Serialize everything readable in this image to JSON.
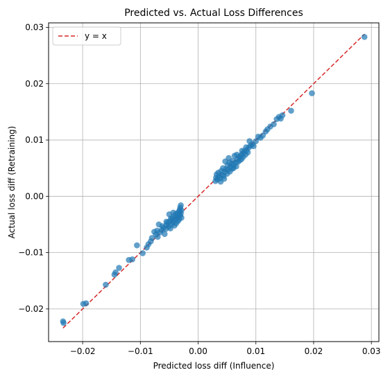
{
  "chart_data": {
    "type": "scatter",
    "title": "Predicted vs. Actual Loss Differences",
    "xlabel": "Predicted loss diff (Influence)",
    "ylabel": "Actual loss diff (Retraining)",
    "xlim": [
      -0.0259,
      0.0313
    ],
    "ylim": [
      -0.0258,
      0.0308
    ],
    "xticks": [
      -0.02,
      -0.01,
      0.0,
      0.01,
      0.02,
      0.03
    ],
    "xtick_labels": [
      "−0.02",
      "−0.01",
      "0.00",
      "0.01",
      "0.02",
      "0.03"
    ],
    "yticks": [
      -0.02,
      -0.01,
      0.0,
      0.01,
      0.02,
      0.03
    ],
    "ytick_labels": [
      "−0.02",
      "−0.01",
      "0.00",
      "0.01",
      "0.02",
      "0.03"
    ],
    "grid": true,
    "legend": {
      "position": "upper-left",
      "entries": [
        "y = x"
      ]
    },
    "colors": {
      "points": "#1f77b4",
      "reference_line": "#d62728",
      "grid": "#b0b0b0"
    },
    "reference_line": {
      "name": "y = x",
      "x": [
        -0.0234,
        0.0288
      ],
      "y": [
        -0.0234,
        0.0288
      ]
    },
    "points": [
      [
        -0.0234,
        -0.0222
      ],
      [
        -0.0233,
        -0.0225
      ],
      [
        -0.0199,
        -0.0191
      ],
      [
        -0.0194,
        -0.019
      ],
      [
        -0.016,
        -0.0157
      ],
      [
        -0.0145,
        -0.0139
      ],
      [
        -0.0143,
        -0.0135
      ],
      [
        -0.0137,
        -0.0127
      ],
      [
        -0.012,
        -0.0113
      ],
      [
        -0.0114,
        -0.0112
      ],
      [
        -0.0106,
        -0.0087
      ],
      [
        -0.0096,
        -0.0101
      ],
      [
        -0.0089,
        -0.0091
      ],
      [
        -0.0086,
        -0.0085
      ],
      [
        -0.0082,
        -0.008
      ],
      [
        -0.008,
        -0.0074
      ],
      [
        -0.0076,
        -0.0063
      ],
      [
        -0.0073,
        -0.0068
      ],
      [
        -0.007,
        -0.0072
      ],
      [
        -0.0068,
        -0.005
      ],
      [
        -0.0066,
        -0.0064
      ],
      [
        -0.0063,
        -0.006
      ],
      [
        -0.006,
        -0.0056
      ],
      [
        -0.0058,
        -0.0067
      ],
      [
        -0.0056,
        -0.0058
      ],
      [
        -0.0055,
        -0.0051
      ],
      [
        -0.0053,
        -0.0047
      ],
      [
        -0.0051,
        -0.0054
      ],
      [
        -0.0049,
        -0.0044
      ],
      [
        -0.0048,
        -0.0057
      ],
      [
        -0.0046,
        -0.005
      ],
      [
        -0.0045,
        -0.004
      ],
      [
        -0.0044,
        -0.0046
      ],
      [
        -0.0042,
        -0.0036
      ],
      [
        -0.0041,
        -0.0052
      ],
      [
        -0.004,
        -0.0042
      ],
      [
        -0.0039,
        -0.0032
      ],
      [
        -0.0038,
        -0.0048
      ],
      [
        -0.0037,
        -0.0038
      ],
      [
        -0.0036,
        -0.003
      ],
      [
        -0.0035,
        -0.0044
      ],
      [
        -0.0034,
        -0.0035
      ],
      [
        -0.0033,
        -0.0027
      ],
      [
        -0.0033,
        -0.0041
      ],
      [
        -0.0032,
        -0.0024
      ],
      [
        -0.0031,
        -0.0034
      ],
      [
        -0.0031,
        -0.002
      ],
      [
        -0.003,
        -0.003
      ],
      [
        -0.003,
        -0.0016
      ],
      [
        -0.0029,
        -0.0038
      ],
      [
        -0.0029,
        -0.0025
      ],
      [
        -0.005,
        -0.0032
      ],
      [
        -0.0043,
        -0.0029
      ],
      [
        -0.0047,
        -0.0039
      ],
      [
        -0.0055,
        -0.0045
      ],
      [
        -0.0062,
        -0.0053
      ],
      [
        -0.0071,
        -0.0061
      ],
      [
        0.003,
        0.0027
      ],
      [
        0.0031,
        0.0033
      ],
      [
        0.0032,
        0.0039
      ],
      [
        0.0033,
        0.003
      ],
      [
        0.0035,
        0.0042
      ],
      [
        0.0036,
        0.0035
      ],
      [
        0.0038,
        0.0032
      ],
      [
        0.004,
        0.0045
      ],
      [
        0.0041,
        0.0038
      ],
      [
        0.0043,
        0.005
      ],
      [
        0.0044,
        0.0036
      ],
      [
        0.0046,
        0.0043
      ],
      [
        0.0047,
        0.0062
      ],
      [
        0.0048,
        0.0048
      ],
      [
        0.005,
        0.004
      ],
      [
        0.0051,
        0.0055
      ],
      [
        0.0052,
        0.0047
      ],
      [
        0.0054,
        0.006
      ],
      [
        0.0055,
        0.0044
      ],
      [
        0.0056,
        0.0052
      ],
      [
        0.0058,
        0.0058
      ],
      [
        0.0059,
        0.0049
      ],
      [
        0.006,
        0.0063
      ],
      [
        0.0062,
        0.0055
      ],
      [
        0.0063,
        0.0072
      ],
      [
        0.0065,
        0.006
      ],
      [
        0.0066,
        0.0053
      ],
      [
        0.0068,
        0.0066
      ],
      [
        0.0069,
        0.0061
      ],
      [
        0.0071,
        0.007
      ],
      [
        0.0072,
        0.0064
      ],
      [
        0.0074,
        0.0073
      ],
      [
        0.0075,
        0.0066
      ],
      [
        0.0077,
        0.0076
      ],
      [
        0.0078,
        0.007
      ],
      [
        0.008,
        0.008
      ],
      [
        0.0082,
        0.0074
      ],
      [
        0.0084,
        0.0082
      ],
      [
        0.0086,
        0.0078
      ],
      [
        0.0088,
        0.0087
      ],
      [
        0.0089,
        0.0098
      ],
      [
        0.0091,
        0.009
      ],
      [
        0.0094,
        0.0093
      ],
      [
        0.01,
        0.0098
      ],
      [
        0.0104,
        0.0106
      ],
      [
        0.0108,
        0.0104
      ],
      [
        0.0112,
        0.0108
      ],
      [
        0.0117,
        0.0115
      ],
      [
        0.012,
        0.0119
      ],
      [
        0.0125,
        0.0124
      ],
      [
        0.0131,
        0.0128
      ],
      [
        0.0136,
        0.0137
      ],
      [
        0.014,
        0.0141
      ],
      [
        0.0143,
        0.0138
      ],
      [
        0.0146,
        0.0144
      ],
      [
        0.0161,
        0.0152
      ],
      [
        0.0197,
        0.0183
      ],
      [
        0.0288,
        0.0283
      ],
      [
        0.0039,
        0.0026
      ],
      [
        0.0045,
        0.0031
      ],
      [
        0.0053,
        0.0068
      ],
      [
        0.0061,
        0.005
      ],
      [
        0.0067,
        0.0074
      ],
      [
        0.0076,
        0.0081
      ],
      [
        0.0083,
        0.0087
      ],
      [
        0.0096,
        0.0089
      ]
    ]
  }
}
